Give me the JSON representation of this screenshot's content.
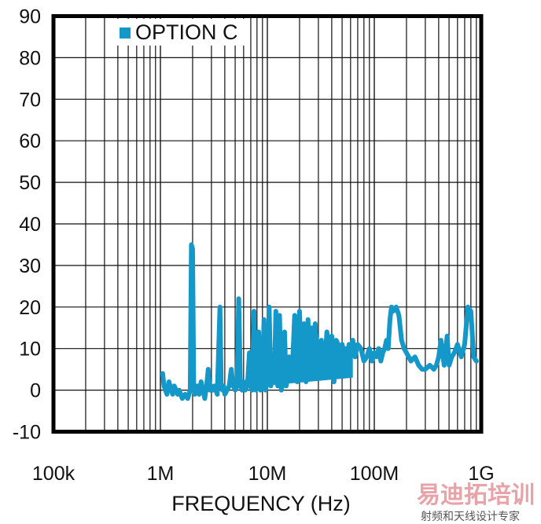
{
  "chart_data": {
    "type": "line",
    "title": "",
    "xlabel": "FREQUENCY (Hz)",
    "ylabel": "",
    "x_scale": "log",
    "xlim": [
      100000,
      1000000000
    ],
    "ylim": [
      -10,
      90
    ],
    "grid": true,
    "legend_position": "top-left inside",
    "x_tick_labels": [
      "100k",
      "1M",
      "10M",
      "100M",
      "1G"
    ],
    "x_tick_values": [
      100000,
      1000000,
      10000000,
      100000000,
      1000000000
    ],
    "y_tick_labels": [
      "90",
      "80",
      "70",
      "60",
      "50",
      "40",
      "30",
      "20",
      "10",
      "0",
      "-10"
    ],
    "y_tick_values": [
      90,
      80,
      70,
      60,
      50,
      40,
      30,
      20,
      10,
      0,
      -10
    ],
    "series": [
      {
        "name": "OPTION C",
        "color": "#1497c9",
        "x_hz": [
          1050000,
          1080000,
          1150000,
          1200000,
          1300000,
          1350000,
          1450000,
          1500000,
          1600000,
          1700000,
          1800000,
          1850000,
          1900000,
          1950000,
          2000000,
          2050000,
          2100000,
          2200000,
          2300000,
          2400000,
          2500000,
          2600000,
          2700000,
          2800000,
          2900000,
          3000000,
          3100000,
          3200000,
          3400000,
          3600000,
          3700000,
          3800000,
          3900000,
          4000000,
          4200000,
          4400000,
          4600000,
          4800000,
          5000000,
          5200000,
          5400000,
          5600000,
          5800000,
          6000000,
          6200000,
          6500000,
          6800000,
          7000000,
          7200000,
          7500000,
          7800000,
          8000000,
          8300000,
          8600000,
          9000000,
          9300000,
          9600000,
          10000000,
          10400000,
          10800000,
          11200000,
          11600000,
          12000000,
          12500000,
          13000000,
          13500000,
          14000000,
          14500000,
          15000000,
          15500000,
          16000000,
          17000000,
          18000000,
          19000000,
          20000000,
          21000000,
          22000000,
          23000000,
          24000000,
          25000000,
          26000000,
          27000000,
          28000000,
          30000000,
          32000000,
          34000000,
          36000000,
          38000000,
          40000000,
          42000000,
          44000000,
          46000000,
          48000000,
          50000000,
          52000000,
          54000000,
          56000000,
          58000000,
          60000000,
          63000000,
          66000000,
          70000000,
          75000000,
          80000000,
          85000000,
          90000000,
          95000000,
          100000000,
          105000000,
          110000000,
          115000000,
          120000000,
          125000000,
          130000000,
          135000000,
          140000000,
          145000000,
          150000000,
          160000000,
          170000000,
          180000000,
          190000000,
          200000000,
          220000000,
          240000000,
          260000000,
          280000000,
          300000000,
          330000000,
          360000000,
          380000000,
          400000000,
          420000000,
          450000000,
          480000000,
          500000000,
          530000000,
          560000000,
          600000000,
          650000000,
          700000000,
          750000000,
          800000000,
          850000000,
          900000000,
          930000000,
          950000000,
          970000000,
          1000000000
        ],
        "y_db": [
          4,
          1,
          -1,
          2,
          -1,
          1,
          -1,
          0,
          -2,
          -1,
          -2,
          -1,
          0,
          35,
          34,
          1,
          -1,
          1,
          -1,
          2,
          0,
          -2,
          1,
          5,
          0,
          1,
          0,
          1,
          -1,
          20,
          1,
          0,
          1,
          -1,
          0,
          1,
          5,
          1,
          0,
          1,
          22,
          1,
          0,
          2,
          0,
          1,
          9,
          1,
          0,
          19,
          0,
          1,
          14,
          0,
          1,
          17,
          0,
          2,
          20,
          1,
          7,
          2,
          19,
          1,
          18,
          0,
          2,
          14,
          1,
          3,
          8,
          3,
          18,
          2,
          19,
          3,
          16,
          2,
          17,
          4,
          15,
          3,
          16,
          5,
          12,
          4,
          14,
          8,
          13,
          2,
          12,
          11,
          7,
          11,
          9,
          10,
          6,
          11,
          9,
          12,
          8,
          11,
          10,
          7,
          8,
          10,
          7,
          9,
          8,
          10,
          7,
          9,
          10,
          12,
          10,
          17,
          20,
          19,
          20,
          18,
          12,
          10,
          9,
          7,
          8,
          6,
          5,
          5,
          6,
          5,
          6,
          8,
          12,
          6,
          13,
          6,
          8,
          9,
          11,
          8,
          11,
          20,
          19,
          8,
          7
        ]
      }
    ]
  },
  "legend": {
    "label": "OPTION C",
    "swatch_color": "#1497c9"
  },
  "axes": {
    "x_title": "FREQUENCY (Hz)",
    "x_ticks": [
      "100k",
      "1M",
      "10M",
      "100M",
      "1G"
    ],
    "y_ticks": [
      "90",
      "80",
      "70",
      "60",
      "50",
      "40",
      "30",
      "20",
      "10",
      "0",
      "-10"
    ]
  },
  "watermark": {
    "main": "易迪拓培训",
    "sub": "射频和天线设计专家"
  }
}
